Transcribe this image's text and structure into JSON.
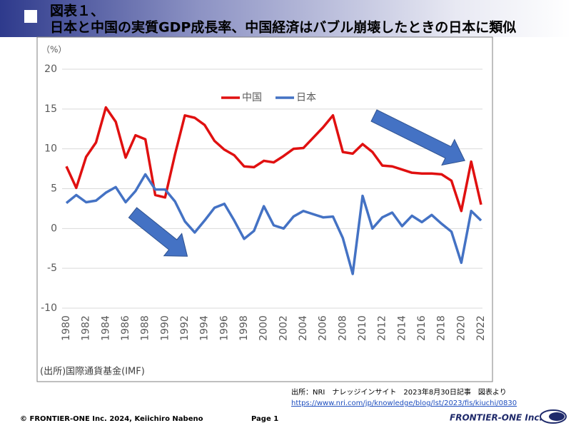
{
  "header": {
    "title": [
      "図表１、",
      "日本と中国の実質GDP成長率、中国経済はバブル崩壊したときの日本に類似"
    ]
  },
  "chart_data": {
    "type": "line",
    "y_unit": "（%）",
    "note": "(出所)国際通貨基金(IMF)",
    "categories": [
      "1980",
      null,
      "1982",
      null,
      "1984",
      null,
      "1986",
      null,
      "1988",
      null,
      "1990",
      null,
      "1992",
      null,
      "1994",
      null,
      "1996",
      null,
      "1998",
      null,
      "2000",
      null,
      "2002",
      null,
      "2004",
      null,
      "2006",
      null,
      "2008",
      null,
      "2010",
      null,
      "2012",
      null,
      "2014",
      null,
      "2016",
      null,
      "2018",
      null,
      "2020",
      null,
      "2022"
    ],
    "series": [
      {
        "name": "中国",
        "color": "#e01010",
        "values": [
          7.8,
          5.1,
          9.0,
          10.8,
          15.2,
          13.4,
          8.9,
          11.7,
          11.2,
          4.2,
          3.9,
          9.3,
          14.2,
          13.9,
          13.0,
          11.0,
          9.9,
          9.2,
          7.8,
          7.7,
          8.5,
          8.3,
          9.1,
          10.0,
          10.1,
          11.4,
          12.7,
          14.2,
          9.6,
          9.4,
          10.6,
          9.6,
          7.9,
          7.8,
          7.4,
          7.0,
          6.9,
          6.9,
          6.8,
          6.0,
          2.2,
          8.4,
          3.0
        ]
      },
      {
        "name": "日本",
        "color": "#4472c4",
        "values": [
          3.2,
          4.2,
          3.3,
          3.5,
          4.5,
          5.2,
          3.3,
          4.7,
          6.8,
          4.9,
          4.9,
          3.4,
          0.9,
          -0.5,
          1.0,
          2.6,
          3.1,
          1.0,
          -1.3,
          -0.3,
          2.8,
          0.4,
          0.0,
          1.5,
          2.2,
          1.8,
          1.4,
          1.5,
          -1.2,
          -5.7,
          4.1,
          0.0,
          1.4,
          2.0,
          0.3,
          1.6,
          0.8,
          1.7,
          0.6,
          -0.4,
          -4.3,
          2.2,
          1.0
        ]
      }
    ],
    "ylim": [
      -10,
      20
    ],
    "yticks": [
      -10,
      -5,
      0,
      5,
      10,
      15,
      20
    ],
    "grid": true,
    "legend": "top"
  },
  "footer": {
    "source": "出所：NRI　ナレッジインサイト　2023年8月30日記事　図表より",
    "url": "https://www.nri.com/jp/knowledge/blog/lst/2023/fis/kiuchi/0830",
    "copyright": "© FRONTIER-ONE Inc. 2024,  Keiichiro Nabeno",
    "page": "Page 1",
    "logo": "FRONTIER-ONE Inc."
  }
}
